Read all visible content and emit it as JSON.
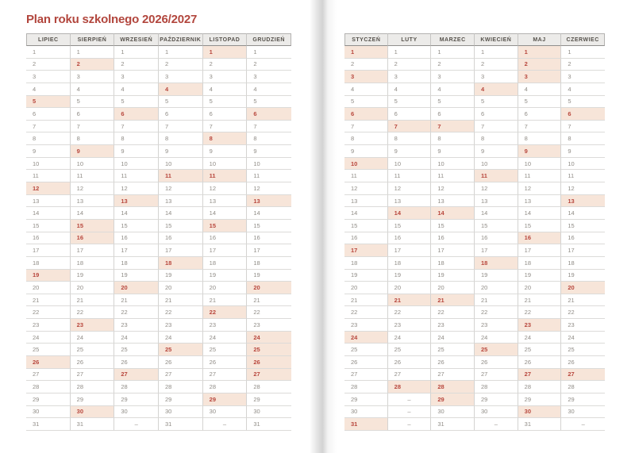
{
  "title": "Plan roku szkolnego 2026/2027",
  "empty_day_marker": "–",
  "max_rows": 31,
  "colors": {
    "title_text": "#b2463d",
    "highlight_background": "#f7e5d9",
    "highlight_text": "#b8473d",
    "header_background": "#ecebe9",
    "header_text": "#55514b",
    "day_text": "#908c86"
  },
  "pages": [
    {
      "side": "left",
      "months": [
        {
          "name": "LIPIEC",
          "days": 31,
          "highlighted": [
            5,
            12,
            19,
            26
          ]
        },
        {
          "name": "SIERPIEŃ",
          "days": 31,
          "highlighted": [
            2,
            9,
            15,
            16,
            23,
            30
          ]
        },
        {
          "name": "WRZESIEŃ",
          "days": 30,
          "highlighted": [
            6,
            13,
            20,
            27
          ]
        },
        {
          "name": "PAŹDZIERNIK",
          "days": 31,
          "highlighted": [
            4,
            11,
            18,
            25
          ]
        },
        {
          "name": "LISTOPAD",
          "days": 30,
          "highlighted": [
            1,
            8,
            11,
            15,
            22,
            29
          ]
        },
        {
          "name": "GRUDZIEŃ",
          "days": 31,
          "highlighted": [
            6,
            13,
            20,
            24,
            25,
            26,
            27
          ]
        }
      ]
    },
    {
      "side": "right",
      "months": [
        {
          "name": "STYCZEŃ",
          "days": 31,
          "highlighted": [
            1,
            3,
            6,
            10,
            17,
            24,
            31
          ]
        },
        {
          "name": "LUTY",
          "days": 28,
          "highlighted": [
            7,
            14,
            21,
            28
          ]
        },
        {
          "name": "MARZEC",
          "days": 31,
          "highlighted": [
            7,
            14,
            21,
            28,
            29
          ]
        },
        {
          "name": "KWIECIEŃ",
          "days": 30,
          "highlighted": [
            4,
            11,
            18,
            25
          ]
        },
        {
          "name": "MAJ",
          "days": 31,
          "highlighted": [
            1,
            2,
            3,
            9,
            16,
            23,
            27,
            30
          ]
        },
        {
          "name": "CZERWIEC",
          "days": 30,
          "highlighted": [
            6,
            13,
            20,
            27
          ]
        }
      ]
    }
  ]
}
